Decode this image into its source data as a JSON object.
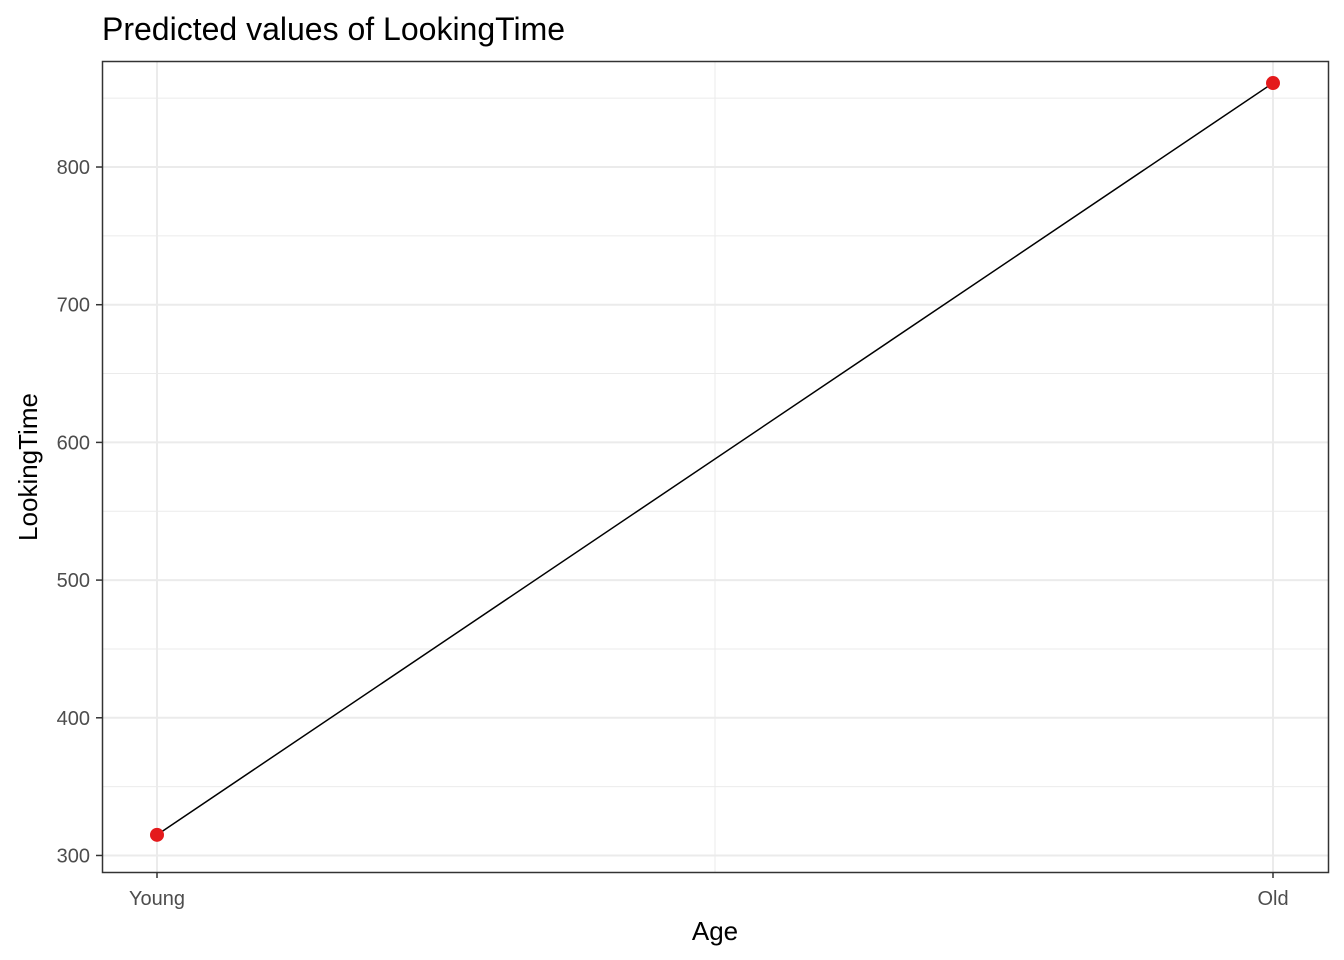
{
  "chart_data": {
    "type": "line",
    "title": "Predicted values of LookingTime",
    "xlabel": "Age",
    "ylabel": "LookingTime",
    "categories": [
      "Young",
      "Old"
    ],
    "series": [
      {
        "name": "LookingTime",
        "values": [
          315,
          861
        ]
      }
    ],
    "ylim": [
      288,
      877
    ],
    "yticks": [
      300,
      400,
      500,
      600,
      700,
      800
    ],
    "ytick_labels": [
      "300",
      "400",
      "500",
      "600",
      "700",
      "800"
    ],
    "grid": true,
    "legend": "none",
    "colors": {
      "point": "#e41a1c",
      "line": "#000000",
      "grid": "#ebebeb",
      "panel_border": "#333333",
      "tick_label": "#4d4d4d"
    }
  }
}
